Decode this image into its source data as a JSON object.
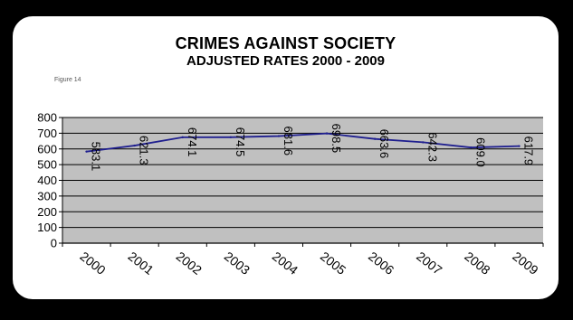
{
  "title": "CRIMES AGAINST SOCIETY",
  "subtitle": "ADJUSTED RATES 2000 - 2009",
  "figure_label": "Figure 14",
  "colors": {
    "plot_bg": "#c0c0c0",
    "line": "#1f1f8f",
    "gridline": "#000000",
    "frame_bg": "#ffffff",
    "page_bg": "#000000"
  },
  "chart_data": {
    "type": "line",
    "categories": [
      "2000",
      "2001",
      "2002",
      "2003",
      "2004",
      "2005",
      "2006",
      "2007",
      "2008",
      "2009"
    ],
    "series": [
      {
        "values": [
          583.1,
          621.3,
          674.1,
          674.5,
          681.6,
          698.5,
          663.6,
          642.3,
          609.0,
          617.9
        ]
      }
    ],
    "data_labels": [
      "583.1",
      "621.3",
      "674.1",
      "674.5",
      "681.6",
      "698.5",
      "663.6",
      "642.3",
      "609.0",
      "617.9"
    ],
    "yticks": [
      "0",
      "100",
      "200",
      "300",
      "400",
      "500",
      "600",
      "700",
      "800"
    ],
    "ylim": [
      0,
      800
    ],
    "grid": true,
    "legend": "none",
    "xlabel": "",
    "ylabel": ""
  }
}
